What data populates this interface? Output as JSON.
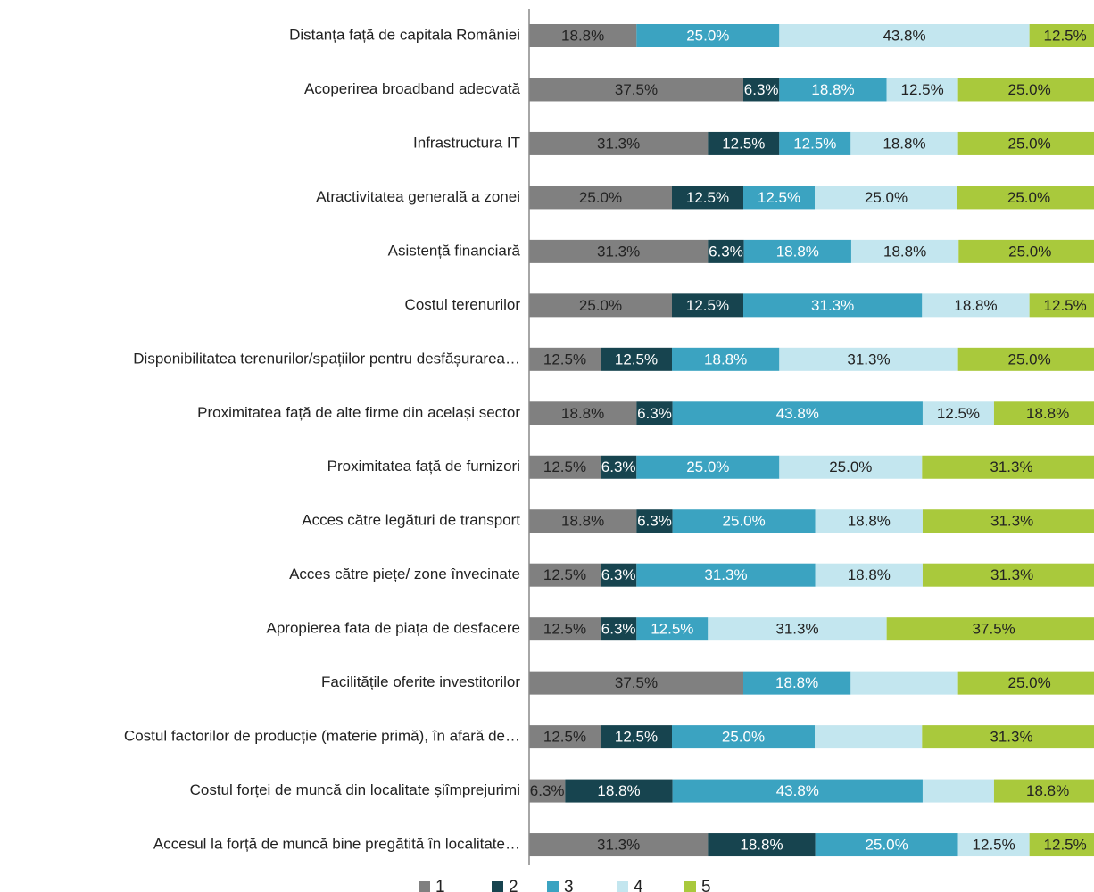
{
  "chart_data": {
    "type": "stacked_bar_horizontal",
    "categories": [
      "Distanța față de capitala României",
      "Acoperirea broadband adecvată",
      "Infrastructura IT",
      "Atractivitatea generală a zonei",
      "Asistență financiară",
      "Costul terenurilor",
      "Disponibilitatea terenurilor/spațiilor pentru desfășurarea…",
      "Proximitatea față de alte firme din același sector",
      "Proximitatea față de furnizori",
      "Acces către legături de transport",
      "Acces către piețe/ zone învecinate",
      "Apropierea fata de piața de desfacere",
      "Facilitățile oferite investitorilor",
      "Costul factorilor de producție (materie primă), în afară de…",
      "Costul forței de muncă din localitate șiîmprejurimi",
      "Accesul la forță de muncă bine pregătită în localitate…"
    ],
    "xlim": [
      0,
      100
    ],
    "series": [
      {
        "name": "1",
        "color": "#808080",
        "values": [
          18.8,
          37.5,
          31.3,
          25.0,
          31.3,
          25.0,
          12.5,
          18.8,
          12.5,
          18.8,
          12.5,
          12.5,
          37.5,
          12.5,
          6.3,
          31.3
        ],
        "value_labels": [
          "18.8%",
          "37.5%",
          "31.3%",
          "25.0%",
          "31.3%",
          "25.0%",
          "12.5%",
          "18.8%",
          "12.5%",
          "18.8%",
          "12.5%",
          "12.5%",
          "37.5%",
          "12.5%",
          "6.3%",
          "31.3%"
        ]
      },
      {
        "name": "2",
        "color": "#17444f",
        "values": [
          null,
          6.3,
          12.5,
          12.5,
          6.3,
          12.5,
          12.5,
          6.3,
          6.3,
          6.3,
          6.3,
          6.3,
          null,
          12.5,
          18.8,
          18.8
        ],
        "value_labels": [
          null,
          "6.3%",
          "12.5%",
          "12.5%",
          "6.3%",
          "12.5%",
          "12.5%",
          "6.3%",
          "6.3%",
          "6.3%",
          "6.3%",
          "6.3%",
          null,
          "12.5%",
          "18.8%",
          "18.8%"
        ]
      },
      {
        "name": "3",
        "color": "#3ba3c1",
        "values": [
          25.0,
          18.8,
          12.5,
          12.5,
          18.8,
          31.3,
          18.8,
          43.8,
          25.0,
          25.0,
          31.3,
          12.5,
          18.8,
          25.0,
          43.8,
          25.0
        ],
        "value_labels": [
          "25.0%",
          "18.8%",
          "12.5%",
          "12.5%",
          "18.8%",
          "31.3%",
          "18.8%",
          "43.8%",
          "25.0%",
          "25.0%",
          "31.3%",
          "12.5%",
          "18.8%",
          "25.0%",
          "43.8%",
          "25.0%"
        ]
      },
      {
        "name": "4",
        "color": "#c3e6ef",
        "values": [
          43.8,
          12.5,
          18.8,
          25.0,
          18.8,
          18.8,
          31.3,
          12.5,
          25.0,
          18.8,
          18.8,
          31.3,
          18.8,
          18.8,
          12.5,
          12.5
        ],
        "value_labels": [
          "43.8%",
          "12.5%",
          "18.8%",
          "25.0%",
          "18.8%",
          "18.8%",
          "31.3%",
          "12.5%",
          "25.0%",
          "18.8%",
          "18.8%",
          "31.3%",
          null,
          null,
          null,
          "12.5%"
        ]
      },
      {
        "name": "5",
        "color": "#a9c93c",
        "values": [
          12.5,
          25.0,
          25.0,
          25.0,
          25.0,
          12.5,
          25.0,
          18.8,
          31.3,
          31.3,
          31.3,
          37.5,
          25.0,
          31.3,
          18.8,
          12.5
        ],
        "value_labels": [
          "12.5%",
          "25.0%",
          "25.0%",
          "25.0%",
          "25.0%",
          "12.5%",
          "25.0%",
          "18.8%",
          "31.3%",
          "31.3%",
          "31.3%",
          "37.5%",
          "25.0%",
          "31.3%",
          "18.8%",
          "12.5%"
        ]
      }
    ],
    "legend": "bottom"
  }
}
